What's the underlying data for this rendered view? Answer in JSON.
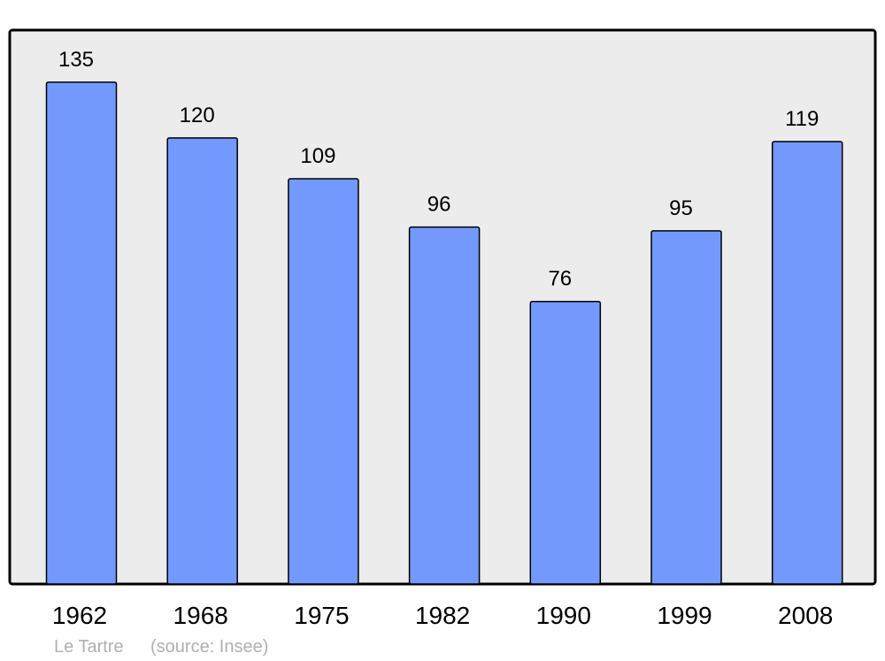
{
  "chart_data": {
    "type": "bar",
    "categories": [
      "1962",
      "1968",
      "1975",
      "1982",
      "1990",
      "1999",
      "2008"
    ],
    "values": [
      135,
      120,
      109,
      96,
      76,
      95,
      119
    ],
    "title": "",
    "xlabel": "",
    "ylabel": "",
    "ylim": [
      0,
      149
    ],
    "grid": false,
    "data_labels": true,
    "colors": {
      "bar": "#7399ff",
      "plot_background": "#ececec",
      "outline": "#000000"
    }
  },
  "footer": {
    "place": "Le Tartre",
    "source": "(source: Insee)"
  }
}
